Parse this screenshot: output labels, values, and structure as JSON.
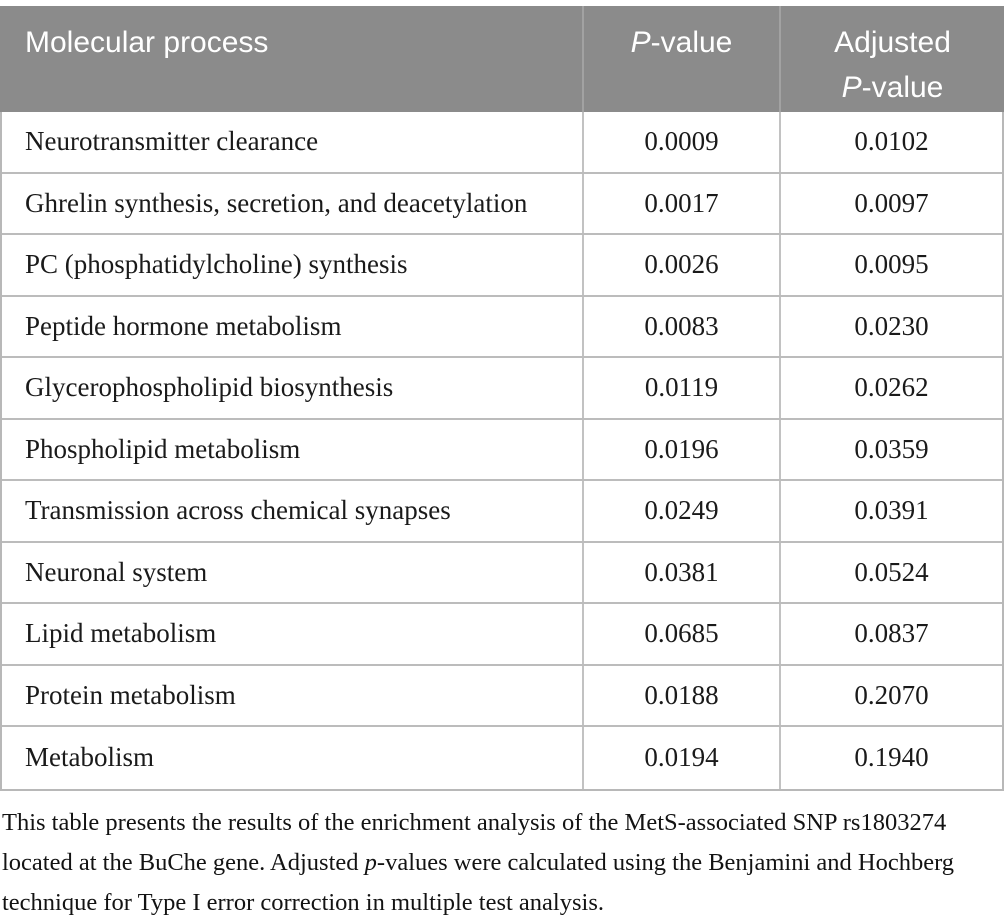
{
  "table": {
    "header": {
      "col1": "Molecular process",
      "p_italic": "P",
      "p_rest": "-value",
      "adj_line1": "Adjusted",
      "adj_italic": "P",
      "adj_rest": "-value"
    },
    "rows": [
      {
        "process": "Neurotransmitter clearance",
        "p": "0.0009",
        "adj": "0.0102"
      },
      {
        "process": "Ghrelin synthesis, secretion, and deacetylation",
        "p": "0.0017",
        "adj": "0.0097"
      },
      {
        "process": "PC (phosphatidylcholine) synthesis",
        "p": "0.0026",
        "adj": "0.0095"
      },
      {
        "process": "Peptide hormone metabolism",
        "p": "0.0083",
        "adj": "0.0230"
      },
      {
        "process": "Glycerophospholipid biosynthesis",
        "p": "0.0119",
        "adj": "0.0262"
      },
      {
        "process": "Phospholipid metabolism",
        "p": "0.0196",
        "adj": "0.0359"
      },
      {
        "process": "Transmission across chemical synapses",
        "p": "0.0249",
        "adj": "0.0391"
      },
      {
        "process": "Neuronal system",
        "p": "0.0381",
        "adj": "0.0524"
      },
      {
        "process": "Lipid metabolism",
        "p": "0.0685",
        "adj": "0.0837"
      },
      {
        "process": "Protein metabolism",
        "p": "0.0188",
        "adj": "0.2070"
      },
      {
        "process": "Metabolism",
        "p": "0.0194",
        "adj": "0.1940"
      }
    ]
  },
  "footnote": {
    "part1": "This table presents the results of the enrichment analysis of the MetS-associated SNP rs1803274 located at the BuChe gene. Adjusted ",
    "italic": "p",
    "part2": "-values were calculated using the Benjamini and Hochberg technique for Type I error correction in multiple test analysis."
  },
  "colors": {
    "header_bg": "#8b8b8b",
    "header_text": "#ffffff",
    "body_text": "#1a1a1a",
    "border": "#b8b8b8"
  }
}
